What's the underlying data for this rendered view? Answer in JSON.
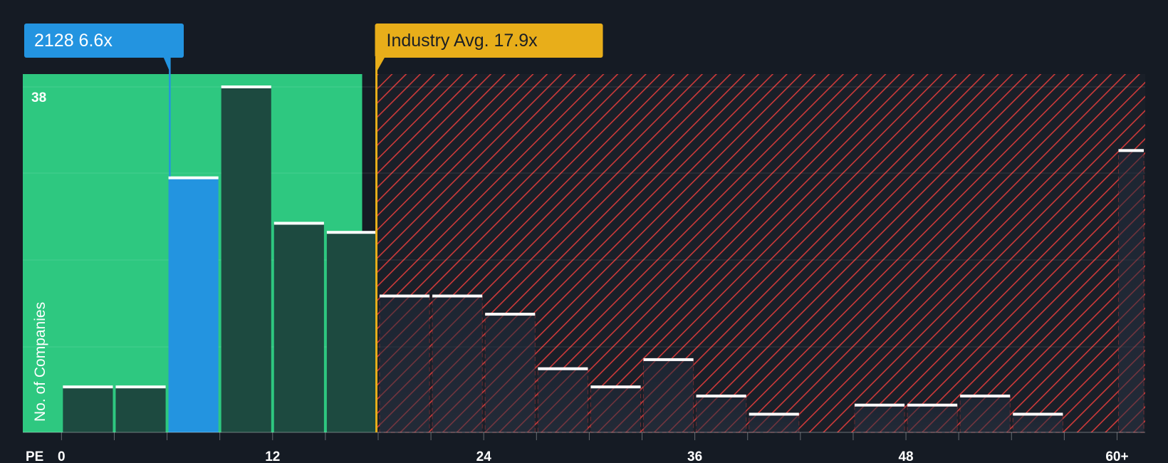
{
  "chart_data": {
    "type": "bar",
    "xlabel": "PE",
    "ylabel": "No. of Companies",
    "ylim": [
      0,
      40
    ],
    "y_max_label": "38",
    "x_ticks": [
      {
        "value": 0,
        "label": "0"
      },
      {
        "value": 12,
        "label": "12"
      },
      {
        "value": 24,
        "label": "24"
      },
      {
        "value": 36,
        "label": "36"
      },
      {
        "value": 48,
        "label": "48"
      },
      {
        "value": 60,
        "label": "60+"
      }
    ],
    "bin_width": 3,
    "bins": [
      {
        "x0": 0,
        "x1": 3,
        "value": 5
      },
      {
        "x0": 3,
        "x1": 6,
        "value": 5
      },
      {
        "x0": 6,
        "x1": 9,
        "value": 28,
        "highlight": true
      },
      {
        "x0": 9,
        "x1": 12,
        "value": 38
      },
      {
        "x0": 12,
        "x1": 15,
        "value": 23
      },
      {
        "x0": 15,
        "x1": 18,
        "value": 22
      },
      {
        "x0": 18,
        "x1": 21,
        "value": 15
      },
      {
        "x0": 21,
        "x1": 24,
        "value": 15
      },
      {
        "x0": 24,
        "x1": 27,
        "value": 13
      },
      {
        "x0": 27,
        "x1": 30,
        "value": 7
      },
      {
        "x0": 30,
        "x1": 33,
        "value": 5
      },
      {
        "x0": 33,
        "x1": 36,
        "value": 8
      },
      {
        "x0": 36,
        "x1": 39,
        "value": 4
      },
      {
        "x0": 39,
        "x1": 42,
        "value": 2
      },
      {
        "x0": 42,
        "x1": 45,
        "value": 0
      },
      {
        "x0": 45,
        "x1": 48,
        "value": 3
      },
      {
        "x0": 48,
        "x1": 51,
        "value": 3
      },
      {
        "x0": 51,
        "x1": 54,
        "value": 4
      },
      {
        "x0": 54,
        "x1": 57,
        "value": 2
      },
      {
        "x0": 57,
        "x1": 60,
        "value": 0
      },
      {
        "x0": 60,
        "x1": 61.6,
        "value": 31
      }
    ],
    "x_domain": [
      -2.2,
      61.6
    ],
    "company": {
      "label": "2128 6.6x",
      "value": 6.6
    },
    "industry": {
      "label": "Industry Avg. 17.9x",
      "value": 17.9
    },
    "fair_zone_end": 17.9,
    "colors": {
      "background": "#151b24",
      "fair_zone": "#2ec880",
      "bar_dark": "#1d4a40",
      "highlight_bar": "#2394e0",
      "company_callout": "#2394e0",
      "industry_callout": "#e8ae1a",
      "hatch_red": "#cf3a3a",
      "gridline": "#ffffff"
    }
  }
}
